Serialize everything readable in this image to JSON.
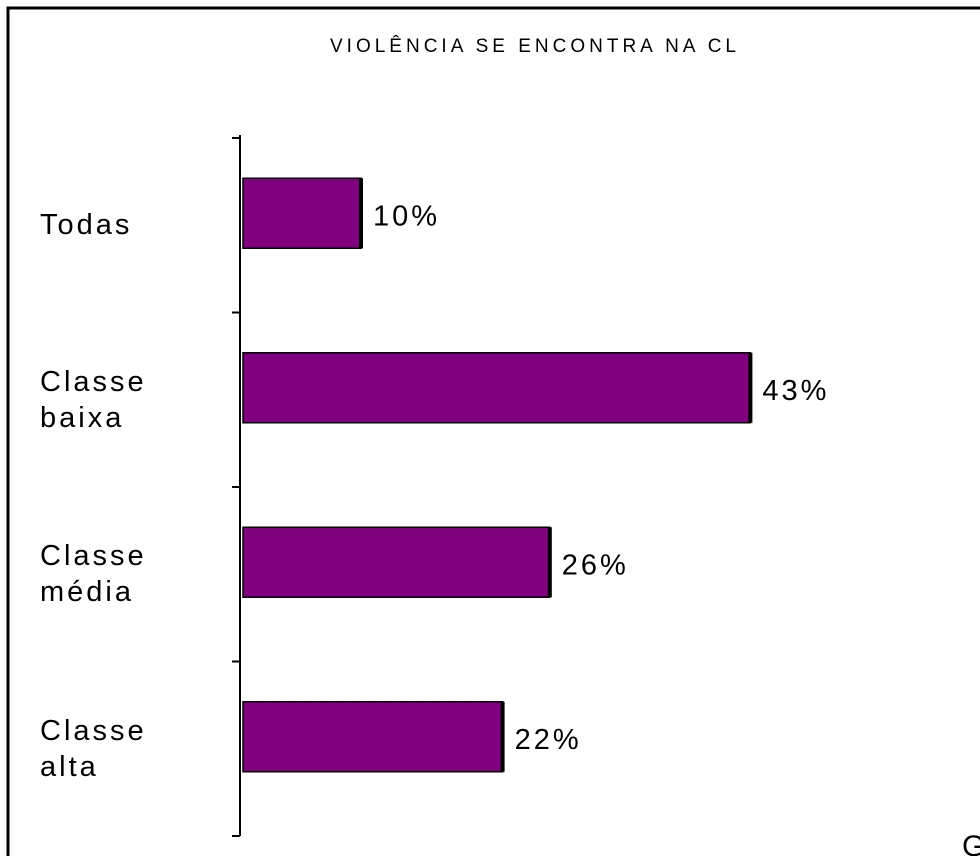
{
  "chart_data": {
    "type": "bar",
    "orientation": "horizontal",
    "title": "VIOLÊNCIA SE ENCONTRA NA CL",
    "categories": [
      "Todas",
      "Classe\nbaixa",
      "Classe\nmédia",
      "Classe\nalta"
    ],
    "values": [
      10,
      43,
      26,
      22
    ],
    "value_labels": [
      "10%",
      "43%",
      "26%",
      "22%"
    ],
    "color": "#800080",
    "xlim": [
      0,
      50
    ],
    "annotation": "G"
  }
}
